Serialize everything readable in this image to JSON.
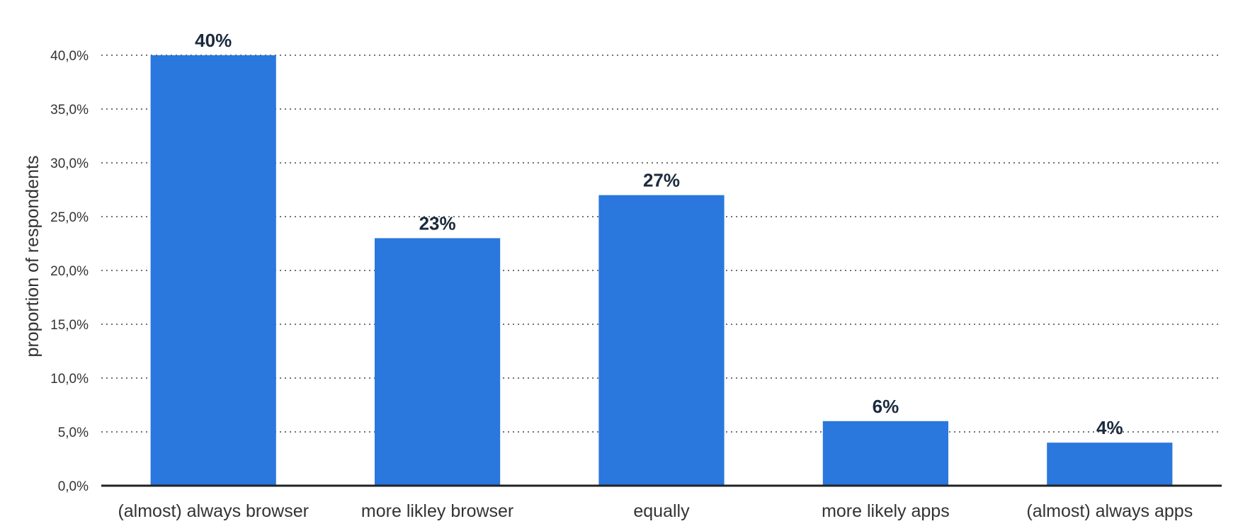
{
  "chart_data": {
    "type": "bar",
    "categories": [
      "(almost) always browser",
      "more likley browser",
      "equally",
      "more likely apps",
      "(almost) always apps"
    ],
    "values": [
      40,
      23,
      27,
      6,
      4
    ],
    "data_labels": [
      "40%",
      "23%",
      "27%",
      "6%",
      "4%"
    ],
    "ylabel": "proportion of respondents",
    "ylim": [
      0,
      40
    ],
    "yticks": [
      0,
      5,
      10,
      15,
      20,
      25,
      30,
      35,
      40
    ],
    "ytick_labels": [
      "0,0%",
      "5,0%",
      "10,0%",
      "15,0%",
      "20,0%",
      "25,0%",
      "30,0%",
      "35,0%",
      "40,0%"
    ],
    "grid": true,
    "bar_color": "#2a77dd"
  }
}
